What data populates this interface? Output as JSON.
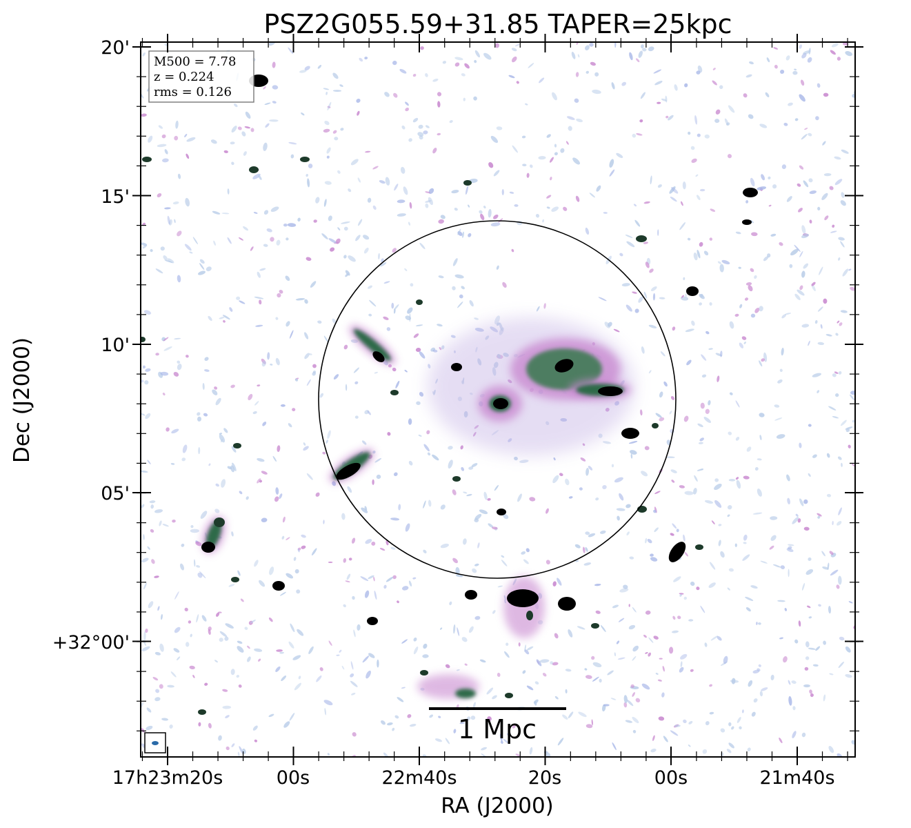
{
  "figure": {
    "title": "PSZ2G055.59+31.85 TAPER=25kpc",
    "x_axis_label": "RA (J2000)",
    "y_axis_label": "Dec (J2000)",
    "x_tick_labels": [
      "17h23m20s",
      "00s",
      "22m40s",
      "20s",
      "00s",
      "21m40s"
    ],
    "y_tick_labels": [
      "20'",
      "15'",
      "10'",
      "05'",
      "+32°00'"
    ],
    "info_box": {
      "mass": "M500 = 7.78",
      "redshift": "z = 0.224",
      "rms": "rms = 0.126"
    },
    "scale_bar_label": "1 Mpc",
    "colors": {
      "faint_noise": "#b8cce8",
      "noise_blue": "#a9b8e8",
      "emission_pink": "#c98ad0",
      "emission_green": "#2f6a48",
      "peak": "#000000",
      "circle": "#000000"
    }
  }
}
